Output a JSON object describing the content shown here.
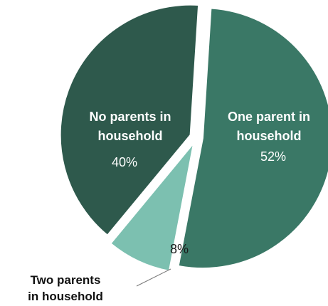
{
  "chart_data": {
    "type": "pie",
    "title": "",
    "slices": [
      {
        "label": "One parent in household",
        "label_lines": [
          "One parent in",
          "household"
        ],
        "value": 52,
        "value_label": "52%",
        "color": "#3a7866"
      },
      {
        "label": "Two parents in household",
        "label_lines": [
          "Two parents",
          "in household"
        ],
        "value": 8,
        "value_label": "8%",
        "color": "#7cc0b0"
      },
      {
        "label": "No parents in household",
        "label_lines": [
          "No parents in",
          "household"
        ],
        "value": 40,
        "value_label": "40%",
        "color": "#2e594c"
      }
    ],
    "legend": "none"
  }
}
